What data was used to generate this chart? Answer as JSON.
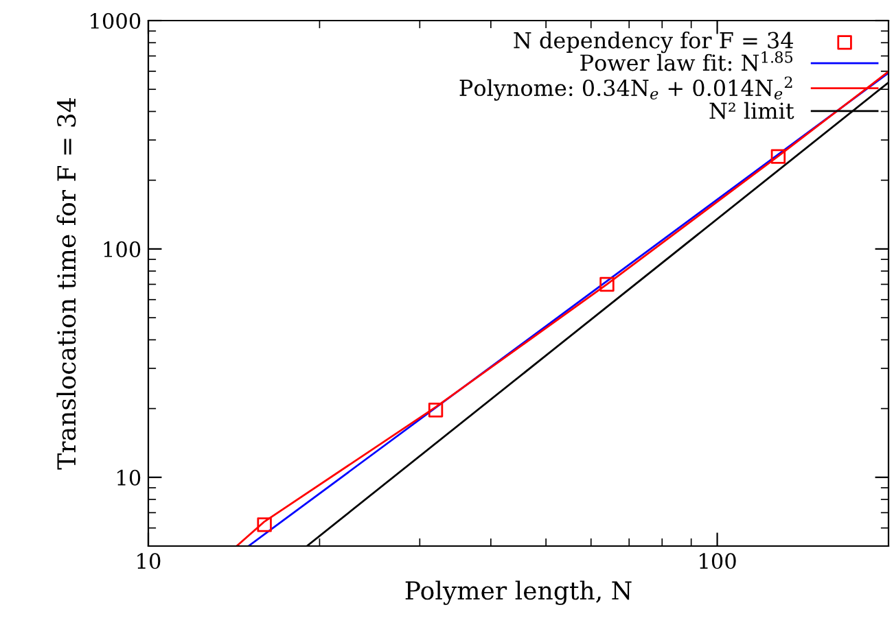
{
  "chart_data": {
    "type": "line",
    "xlabel": "Polymer length, N",
    "ylabel": "Translocation time for F = 34",
    "log": "xy",
    "xlim": [
      10,
      200
    ],
    "ylim": [
      5,
      1000
    ],
    "xticks": [
      10,
      100
    ],
    "yticks": [
      10,
      100,
      1000
    ],
    "grid": false,
    "legend": "top right",
    "series": [
      {
        "name": "N dependency for F = 34",
        "type": "scatter",
        "marker": "square",
        "color": "#ff0000",
        "x": [
          16,
          32,
          64,
          128
        ],
        "values": [
          6.2,
          19.7,
          70,
          254
        ]
      },
      {
        "name": "Power law fit: N$^{1.85}$",
        "color": "#0000ff",
        "x": [
          15,
          200
        ],
        "values": [
          5,
          590
        ]
      },
      {
        "name": "Polynome: 0.34N$_{e}$ + 0.014N$_{e}$$^{2}$",
        "color": "#ff0000",
        "x": [
          14.3,
          16,
          32,
          64,
          128,
          200
        ],
        "values": [
          5,
          6.4,
          20.3,
          70,
          255,
          598
        ]
      },
      {
        "name": "N² limit",
        "color": "#000000",
        "x": [
          19,
          200
        ],
        "values": [
          5,
          536
        ]
      }
    ]
  }
}
